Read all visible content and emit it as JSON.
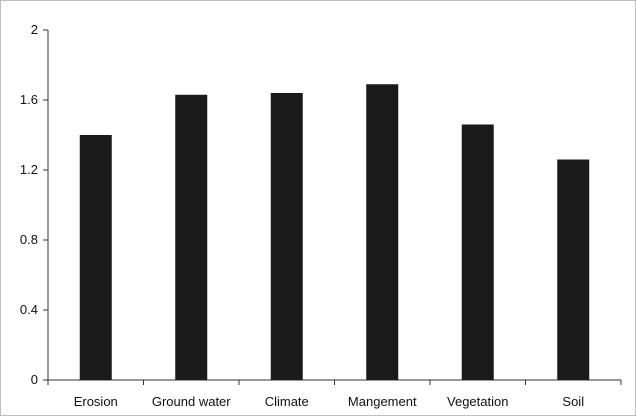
{
  "chart_data": {
    "type": "bar",
    "title": "",
    "xlabel": "",
    "ylabel": "",
    "categories": [
      "Erosion",
      "Ground water",
      "Climate",
      "Mangement",
      "Vegetation",
      "Soil"
    ],
    "values": [
      1.4,
      1.63,
      1.64,
      1.69,
      1.46,
      1.26
    ],
    "ylim": [
      0,
      2
    ],
    "yticks": [
      0,
      0.4,
      0.8,
      1.2,
      1.6,
      2
    ],
    "ytick_labels": [
      "0",
      "0.4",
      "0.8",
      "1.2",
      "1.6",
      "2"
    ],
    "grid": false,
    "legend": "none",
    "bar_color": "#1a1a1a"
  }
}
